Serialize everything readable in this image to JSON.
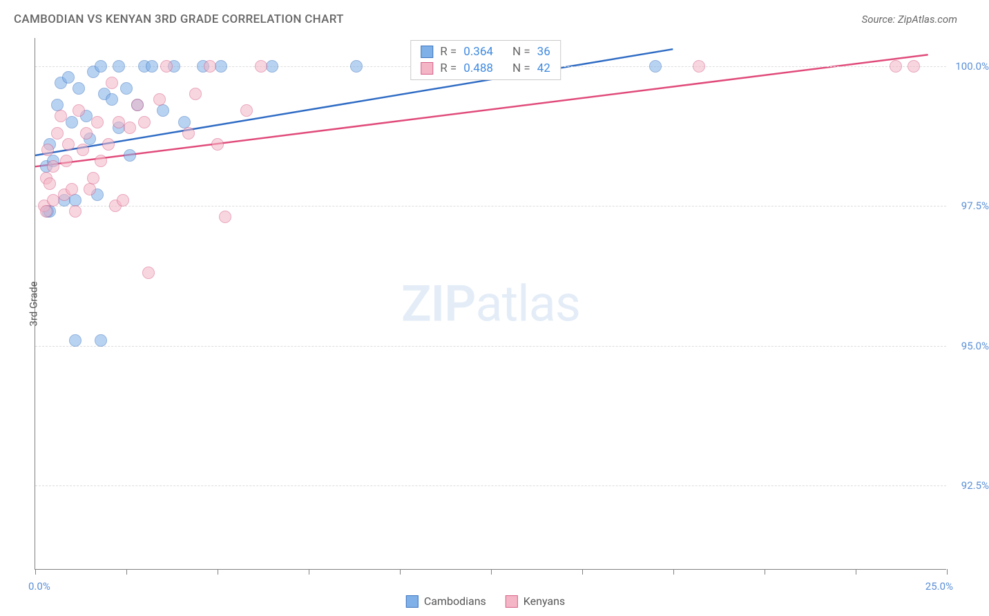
{
  "header": {
    "title": "CAMBODIAN VS KENYAN 3RD GRADE CORRELATION CHART",
    "source": "Source: ZipAtlas.com"
  },
  "watermark": {
    "bold": "ZIP",
    "light": "atlas"
  },
  "chart": {
    "type": "scatter",
    "yaxis_title": "3rd Grade",
    "xlim": [
      0,
      25
    ],
    "ylim": [
      91,
      100.5
    ],
    "background_color": "#ffffff",
    "grid_color": "#dcdcdc",
    "axis_color": "#808080",
    "tick_label_color": "#5a8fd6",
    "yticks": [
      {
        "value": 100.0,
        "label": "100.0%"
      },
      {
        "value": 97.5,
        "label": "97.5%"
      },
      {
        "value": 95.0,
        "label": "95.0%"
      },
      {
        "value": 92.5,
        "label": "92.5%"
      }
    ],
    "xticks": [
      {
        "value": 0,
        "label": "0.0%"
      },
      {
        "value": 2.5,
        "label": ""
      },
      {
        "value": 5,
        "label": ""
      },
      {
        "value": 7.5,
        "label": ""
      },
      {
        "value": 10,
        "label": ""
      },
      {
        "value": 12.5,
        "label": ""
      },
      {
        "value": 15,
        "label": ""
      },
      {
        "value": 17.5,
        "label": ""
      },
      {
        "value": 20,
        "label": ""
      },
      {
        "value": 22.5,
        "label": ""
      },
      {
        "value": 25,
        "label": "25.0%"
      }
    ],
    "point_radius": 9,
    "point_opacity": 0.55,
    "line_width": 2.5,
    "series": [
      {
        "name": "Cambodians",
        "fill_color": "#7fb0e8",
        "stroke_color": "#3b74c0",
        "line_color": "#2e6bc4",
        "R": "0.364",
        "N": "36",
        "trend": {
          "x1": 0,
          "y1": 98.4,
          "x2": 17.5,
          "y2": 100.3
        },
        "points": [
          [
            0.3,
            98.2
          ],
          [
            0.35,
            97.4
          ],
          [
            0.4,
            98.6
          ],
          [
            0.4,
            97.4
          ],
          [
            0.5,
            98.3
          ],
          [
            0.6,
            99.3
          ],
          [
            0.7,
            99.7
          ],
          [
            0.8,
            97.6
          ],
          [
            0.9,
            99.8
          ],
          [
            1.0,
            99.0
          ],
          [
            1.1,
            97.6
          ],
          [
            1.1,
            95.1
          ],
          [
            1.2,
            99.6
          ],
          [
            1.4,
            99.1
          ],
          [
            1.5,
            98.7
          ],
          [
            1.6,
            99.9
          ],
          [
            1.7,
            97.7
          ],
          [
            1.8,
            100.0
          ],
          [
            1.9,
            99.5
          ],
          [
            2.1,
            99.4
          ],
          [
            2.3,
            98.9
          ],
          [
            2.3,
            100.0
          ],
          [
            2.5,
            99.6
          ],
          [
            2.6,
            98.4
          ],
          [
            2.8,
            99.3
          ],
          [
            3.0,
            100.0
          ],
          [
            1.8,
            95.1
          ],
          [
            3.2,
            100.0
          ],
          [
            3.5,
            99.2
          ],
          [
            3.8,
            100.0
          ],
          [
            4.1,
            99.0
          ],
          [
            4.6,
            100.0
          ],
          [
            5.1,
            100.0
          ],
          [
            6.5,
            100.0
          ],
          [
            8.8,
            100.0
          ],
          [
            17.0,
            100.0
          ]
        ]
      },
      {
        "name": "Kenyans",
        "fill_color": "#f4b6c6",
        "stroke_color": "#d85f88",
        "line_color": "#e04a7a",
        "R": "0.488",
        "N": "42",
        "trend": {
          "x1": 0,
          "y1": 98.2,
          "x2": 24.5,
          "y2": 100.2
        },
        "points": [
          [
            0.25,
            97.5
          ],
          [
            0.3,
            98.0
          ],
          [
            0.3,
            97.4
          ],
          [
            0.35,
            98.5
          ],
          [
            0.4,
            97.9
          ],
          [
            0.5,
            98.2
          ],
          [
            0.5,
            97.6
          ],
          [
            0.6,
            98.8
          ],
          [
            0.7,
            99.1
          ],
          [
            0.8,
            97.7
          ],
          [
            0.85,
            98.3
          ],
          [
            0.9,
            98.6
          ],
          [
            1.0,
            97.8
          ],
          [
            1.1,
            97.4
          ],
          [
            1.2,
            99.2
          ],
          [
            1.3,
            98.5
          ],
          [
            1.4,
            98.8
          ],
          [
            1.5,
            97.8
          ],
          [
            1.6,
            98.0
          ],
          [
            1.7,
            99.0
          ],
          [
            1.8,
            98.3
          ],
          [
            2.0,
            98.6
          ],
          [
            2.1,
            99.7
          ],
          [
            2.2,
            97.5
          ],
          [
            2.3,
            99.0
          ],
          [
            2.4,
            97.6
          ],
          [
            2.6,
            98.9
          ],
          [
            2.8,
            99.3
          ],
          [
            3.0,
            99.0
          ],
          [
            3.1,
            96.3
          ],
          [
            3.4,
            99.4
          ],
          [
            3.6,
            100.0
          ],
          [
            4.2,
            98.8
          ],
          [
            4.4,
            99.5
          ],
          [
            5.0,
            98.6
          ],
          [
            5.2,
            97.3
          ],
          [
            5.8,
            99.2
          ],
          [
            6.2,
            100.0
          ],
          [
            4.8,
            100.0
          ],
          [
            23.6,
            100.0
          ],
          [
            24.1,
            100.0
          ],
          [
            18.2,
            100.0
          ]
        ]
      }
    ]
  },
  "legend_stats": {
    "r_label": "R =",
    "n_label": "N ="
  }
}
